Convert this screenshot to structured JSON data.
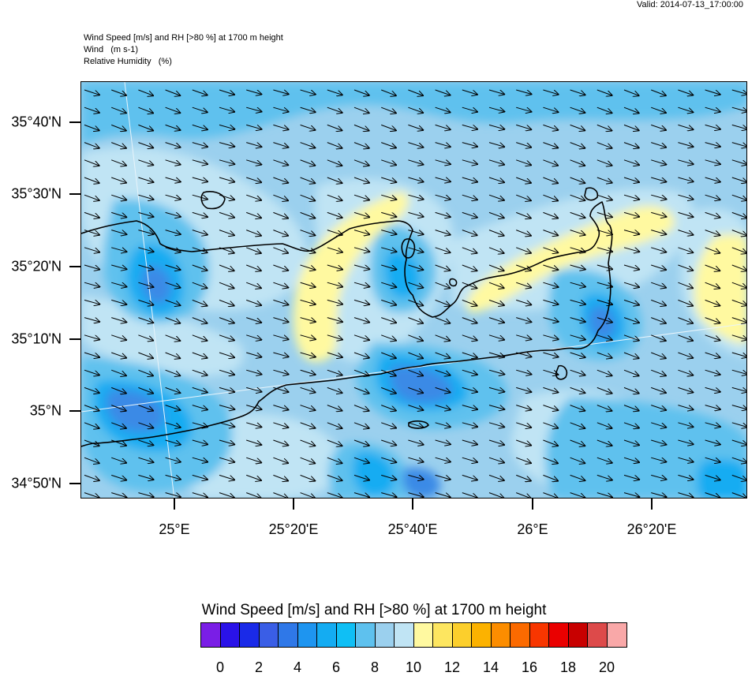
{
  "valid_text": "Valid: 2014-07-13_17:00:00",
  "header": {
    "line1": "Wind Speed [m/s] and RH [>80 %] at 1700 m height",
    "line2": "Wind   (m s-1)",
    "line3": "Relative Humidity   (%)"
  },
  "lat_labels": [
    "35°40'N",
    "35°30'N",
    "35°20'N",
    "35°10'N",
    "35°N",
    "34°50'N"
  ],
  "lon_labels": [
    "25°E",
    "25°20'E",
    "25°40'E",
    "26°E",
    "26°20'E"
  ],
  "legend": {
    "title": "Wind Speed [m/s] and RH [>80 %] at 1700 m height",
    "labels": [
      "0",
      "2",
      "4",
      "6",
      "8",
      "10",
      "12",
      "14",
      "16",
      "18",
      "20"
    ],
    "colors": [
      "#7a1ee6",
      "#2a12e8",
      "#1a2ae8",
      "#3a5ee6",
      "#2f78e8",
      "#1e95f0",
      "#14acf2",
      "#0fbff5",
      "#5ec1ee",
      "#9bd0ee",
      "#c0e4f4",
      "#fff9a0",
      "#fde660",
      "#fccf2c",
      "#fcb200",
      "#fc8d00",
      "#fb6a00",
      "#f83600",
      "#ea0000",
      "#c80000",
      "#dd4a4a",
      "#f9a8a8"
    ]
  },
  "field_colors": {
    "blue_dark": "#3a8ae6",
    "blue_mid": "#14acf2",
    "blue_light": "#5ec1ee",
    "blue_pale": "#9bd0ee",
    "blue_vpale": "#c0e4f4",
    "yellow_pale": "#fff9a0"
  }
}
